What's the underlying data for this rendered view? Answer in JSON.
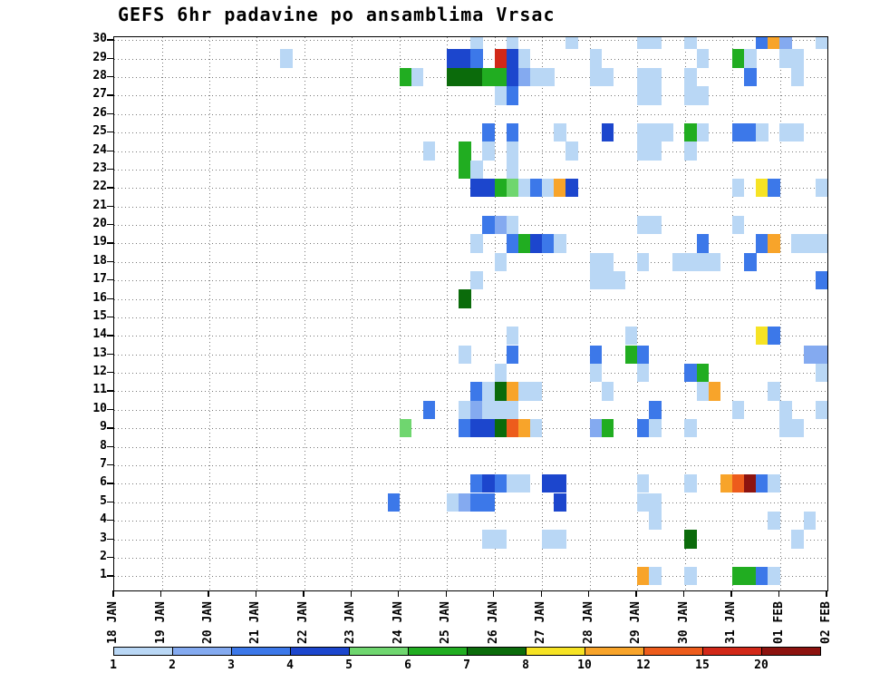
{
  "chart_data": {
    "type": "heatmap",
    "title": "GEFS 6hr padavine po ansamblima Vrsac",
    "subtitle": "",
    "grid": {
      "style": "dotted",
      "color": "#777777"
    },
    "frame_color": "#000000",
    "n_rows": 30,
    "n_cols": 60,
    "cells_per_day": 4,
    "x_axis": {
      "tick_labels": [
        "18 JAN",
        "19 JAN",
        "20 JAN",
        "21 JAN",
        "22 JAN",
        "23 JAN",
        "24 JAN",
        "25 JAN",
        "26 JAN",
        "27 JAN",
        "28 JAN",
        "29 JAN",
        "30 JAN",
        "31 JAN",
        "01 FEB",
        "02 FEB"
      ]
    },
    "y_axis": {
      "tick_labels": [
        "30",
        "29",
        "28",
        "27",
        "26",
        "25",
        "24",
        "23",
        "22",
        "21",
        "20",
        "19",
        "18",
        "17",
        "16",
        "15",
        "14",
        "13",
        "12",
        "11",
        "10",
        "9",
        "8",
        "7",
        "6",
        "5",
        "4",
        "3",
        "2",
        "1"
      ]
    },
    "legend": {
      "position": "bottom",
      "tick_labels": [
        "1",
        "2",
        "3",
        "4",
        "5",
        "6",
        "7",
        "8",
        "10",
        "12",
        "15",
        "20"
      ],
      "values": [
        1,
        2,
        3,
        4,
        5,
        6,
        7,
        8,
        10,
        12,
        15,
        20
      ],
      "colors": [
        "#b9d7f5",
        "#84aaf0",
        "#3c78e9",
        "#1c46cd",
        "#6fd66f",
        "#21ad21",
        "#0b6b0b",
        "#f6e324",
        "#f8a42a",
        "#ed5c1c",
        "#d22818",
        "#8d130f"
      ]
    },
    "cells": [
      {
        "m": 30,
        "t": 30,
        "v": 1
      },
      {
        "m": 30,
        "t": 33,
        "v": 1
      },
      {
        "m": 30,
        "t": 38,
        "v": 1
      },
      {
        "m": 30,
        "t": 44,
        "v": 1
      },
      {
        "m": 30,
        "t": 45,
        "v": 1
      },
      {
        "m": 30,
        "t": 48,
        "v": 1
      },
      {
        "m": 30,
        "t": 54,
        "v": 3
      },
      {
        "m": 30,
        "t": 55,
        "v": 10
      },
      {
        "m": 30,
        "t": 56,
        "v": 2
      },
      {
        "m": 30,
        "t": 59,
        "v": 1
      },
      {
        "m": 29,
        "t": 14,
        "v": 1
      },
      {
        "m": 29,
        "t": 28,
        "v": 4
      },
      {
        "m": 29,
        "t": 29,
        "v": 4
      },
      {
        "m": 29,
        "t": 30,
        "v": 3
      },
      {
        "m": 29,
        "t": 32,
        "v": 15
      },
      {
        "m": 29,
        "t": 33,
        "v": 4
      },
      {
        "m": 29,
        "t": 34,
        "v": 1
      },
      {
        "m": 29,
        "t": 40,
        "v": 1
      },
      {
        "m": 29,
        "t": 49,
        "v": 1
      },
      {
        "m": 29,
        "t": 52,
        "v": 6
      },
      {
        "m": 29,
        "t": 53,
        "v": 1
      },
      {
        "m": 29,
        "t": 56,
        "v": 1
      },
      {
        "m": 29,
        "t": 57,
        "v": 1
      },
      {
        "m": 28,
        "t": 24,
        "v": 6
      },
      {
        "m": 28,
        "t": 25,
        "v": 1
      },
      {
        "m": 28,
        "t": 28,
        "v": 7
      },
      {
        "m": 28,
        "t": 29,
        "v": 7
      },
      {
        "m": 28,
        "t": 30,
        "v": 7
      },
      {
        "m": 28,
        "t": 31,
        "v": 6
      },
      {
        "m": 28,
        "t": 32,
        "v": 6
      },
      {
        "m": 28,
        "t": 33,
        "v": 4
      },
      {
        "m": 28,
        "t": 34,
        "v": 2
      },
      {
        "m": 28,
        "t": 35,
        "v": 1
      },
      {
        "m": 28,
        "t": 36,
        "v": 1
      },
      {
        "m": 28,
        "t": 40,
        "v": 1
      },
      {
        "m": 28,
        "t": 41,
        "v": 1
      },
      {
        "m": 28,
        "t": 44,
        "v": 1
      },
      {
        "m": 28,
        "t": 45,
        "v": 1
      },
      {
        "m": 28,
        "t": 48,
        "v": 1
      },
      {
        "m": 28,
        "t": 53,
        "v": 3
      },
      {
        "m": 28,
        "t": 57,
        "v": 1
      },
      {
        "m": 27,
        "t": 32,
        "v": 1
      },
      {
        "m": 27,
        "t": 33,
        "v": 3
      },
      {
        "m": 27,
        "t": 44,
        "v": 1
      },
      {
        "m": 27,
        "t": 45,
        "v": 1
      },
      {
        "m": 27,
        "t": 48,
        "v": 1
      },
      {
        "m": 27,
        "t": 49,
        "v": 1
      },
      {
        "m": 25,
        "t": 31,
        "v": 3
      },
      {
        "m": 25,
        "t": 33,
        "v": 3
      },
      {
        "m": 25,
        "t": 37,
        "v": 1
      },
      {
        "m": 25,
        "t": 41,
        "v": 4
      },
      {
        "m": 25,
        "t": 44,
        "v": 1
      },
      {
        "m": 25,
        "t": 45,
        "v": 1
      },
      {
        "m": 25,
        "t": 46,
        "v": 1
      },
      {
        "m": 25,
        "t": 48,
        "v": 6
      },
      {
        "m": 25,
        "t": 49,
        "v": 1
      },
      {
        "m": 25,
        "t": 52,
        "v": 3
      },
      {
        "m": 25,
        "t": 53,
        "v": 3
      },
      {
        "m": 25,
        "t": 54,
        "v": 1
      },
      {
        "m": 25,
        "t": 56,
        "v": 1
      },
      {
        "m": 25,
        "t": 57,
        "v": 1
      },
      {
        "m": 24,
        "t": 26,
        "v": 1
      },
      {
        "m": 24,
        "t": 29,
        "v": 6
      },
      {
        "m": 24,
        "t": 31,
        "v": 1
      },
      {
        "m": 24,
        "t": 33,
        "v": 1
      },
      {
        "m": 24,
        "t": 38,
        "v": 1
      },
      {
        "m": 24,
        "t": 44,
        "v": 1
      },
      {
        "m": 24,
        "t": 45,
        "v": 1
      },
      {
        "m": 24,
        "t": 48,
        "v": 1
      },
      {
        "m": 23,
        "t": 29,
        "v": 6
      },
      {
        "m": 23,
        "t": 30,
        "v": 1
      },
      {
        "m": 23,
        "t": 33,
        "v": 1
      },
      {
        "m": 22,
        "t": 30,
        "v": 4
      },
      {
        "m": 22,
        "t": 31,
        "v": 4
      },
      {
        "m": 22,
        "t": 32,
        "v": 6
      },
      {
        "m": 22,
        "t": 33,
        "v": 5
      },
      {
        "m": 22,
        "t": 34,
        "v": 1
      },
      {
        "m": 22,
        "t": 35,
        "v": 3
      },
      {
        "m": 22,
        "t": 36,
        "v": 1
      },
      {
        "m": 22,
        "t": 37,
        "v": 10
      },
      {
        "m": 22,
        "t": 38,
        "v": 4
      },
      {
        "m": 22,
        "t": 52,
        "v": 1
      },
      {
        "m": 22,
        "t": 54,
        "v": 8
      },
      {
        "m": 22,
        "t": 55,
        "v": 3
      },
      {
        "m": 22,
        "t": 59,
        "v": 1
      },
      {
        "m": 20,
        "t": 31,
        "v": 3
      },
      {
        "m": 20,
        "t": 32,
        "v": 2
      },
      {
        "m": 20,
        "t": 33,
        "v": 1
      },
      {
        "m": 20,
        "t": 44,
        "v": 1
      },
      {
        "m": 20,
        "t": 45,
        "v": 1
      },
      {
        "m": 20,
        "t": 52,
        "v": 1
      },
      {
        "m": 19,
        "t": 30,
        "v": 1
      },
      {
        "m": 19,
        "t": 33,
        "v": 3
      },
      {
        "m": 19,
        "t": 34,
        "v": 6
      },
      {
        "m": 19,
        "t": 35,
        "v": 4
      },
      {
        "m": 19,
        "t": 36,
        "v": 3
      },
      {
        "m": 19,
        "t": 37,
        "v": 1
      },
      {
        "m": 19,
        "t": 49,
        "v": 3
      },
      {
        "m": 19,
        "t": 54,
        "v": 3
      },
      {
        "m": 19,
        "t": 55,
        "v": 10
      },
      {
        "m": 19,
        "t": 57,
        "v": 1
      },
      {
        "m": 19,
        "t": 58,
        "v": 1
      },
      {
        "m": 19,
        "t": 59,
        "v": 1
      },
      {
        "m": 18,
        "t": 32,
        "v": 1
      },
      {
        "m": 18,
        "t": 40,
        "v": 1
      },
      {
        "m": 18,
        "t": 41,
        "v": 1
      },
      {
        "m": 18,
        "t": 44,
        "v": 1
      },
      {
        "m": 18,
        "t": 47,
        "v": 1
      },
      {
        "m": 18,
        "t": 48,
        "v": 1
      },
      {
        "m": 18,
        "t": 49,
        "v": 1
      },
      {
        "m": 18,
        "t": 50,
        "v": 1
      },
      {
        "m": 18,
        "t": 53,
        "v": 3
      },
      {
        "m": 17,
        "t": 30,
        "v": 1
      },
      {
        "m": 17,
        "t": 40,
        "v": 1
      },
      {
        "m": 17,
        "t": 41,
        "v": 1
      },
      {
        "m": 17,
        "t": 42,
        "v": 1
      },
      {
        "m": 17,
        "t": 59,
        "v": 3
      },
      {
        "m": 16,
        "t": 29,
        "v": 7
      },
      {
        "m": 14,
        "t": 33,
        "v": 1
      },
      {
        "m": 14,
        "t": 43,
        "v": 1
      },
      {
        "m": 14,
        "t": 54,
        "v": 8
      },
      {
        "m": 14,
        "t": 55,
        "v": 3
      },
      {
        "m": 13,
        "t": 29,
        "v": 1
      },
      {
        "m": 13,
        "t": 33,
        "v": 3
      },
      {
        "m": 13,
        "t": 40,
        "v": 3
      },
      {
        "m": 13,
        "t": 43,
        "v": 6
      },
      {
        "m": 13,
        "t": 44,
        "v": 3
      },
      {
        "m": 13,
        "t": 58,
        "v": 2
      },
      {
        "m": 13,
        "t": 59,
        "v": 2
      },
      {
        "m": 12,
        "t": 32,
        "v": 1
      },
      {
        "m": 12,
        "t": 40,
        "v": 1
      },
      {
        "m": 12,
        "t": 44,
        "v": 1
      },
      {
        "m": 12,
        "t": 48,
        "v": 3
      },
      {
        "m": 12,
        "t": 49,
        "v": 6
      },
      {
        "m": 12,
        "t": 59,
        "v": 1
      },
      {
        "m": 11,
        "t": 30,
        "v": 3
      },
      {
        "m": 11,
        "t": 31,
        "v": 1
      },
      {
        "m": 11,
        "t": 32,
        "v": 7
      },
      {
        "m": 11,
        "t": 33,
        "v": 10
      },
      {
        "m": 11,
        "t": 34,
        "v": 1
      },
      {
        "m": 11,
        "t": 35,
        "v": 1
      },
      {
        "m": 11,
        "t": 41,
        "v": 1
      },
      {
        "m": 11,
        "t": 49,
        "v": 1
      },
      {
        "m": 11,
        "t": 50,
        "v": 10
      },
      {
        "m": 11,
        "t": 55,
        "v": 1
      },
      {
        "m": 10,
        "t": 26,
        "v": 3
      },
      {
        "m": 10,
        "t": 29,
        "v": 1
      },
      {
        "m": 10,
        "t": 30,
        "v": 2
      },
      {
        "m": 10,
        "t": 31,
        "v": 1
      },
      {
        "m": 10,
        "t": 32,
        "v": 1
      },
      {
        "m": 10,
        "t": 33,
        "v": 1
      },
      {
        "m": 10,
        "t": 45,
        "v": 3
      },
      {
        "m": 10,
        "t": 52,
        "v": 1
      },
      {
        "m": 10,
        "t": 56,
        "v": 1
      },
      {
        "m": 10,
        "t": 59,
        "v": 1
      },
      {
        "m": 9,
        "t": 24,
        "v": 5
      },
      {
        "m": 9,
        "t": 29,
        "v": 3
      },
      {
        "m": 9,
        "t": 30,
        "v": 4
      },
      {
        "m": 9,
        "t": 31,
        "v": 4
      },
      {
        "m": 9,
        "t": 32,
        "v": 7
      },
      {
        "m": 9,
        "t": 33,
        "v": 12
      },
      {
        "m": 9,
        "t": 34,
        "v": 10
      },
      {
        "m": 9,
        "t": 35,
        "v": 1
      },
      {
        "m": 9,
        "t": 40,
        "v": 2
      },
      {
        "m": 9,
        "t": 41,
        "v": 6
      },
      {
        "m": 9,
        "t": 44,
        "v": 3
      },
      {
        "m": 9,
        "t": 45,
        "v": 1
      },
      {
        "m": 9,
        "t": 48,
        "v": 1
      },
      {
        "m": 9,
        "t": 56,
        "v": 1
      },
      {
        "m": 9,
        "t": 57,
        "v": 1
      },
      {
        "m": 6,
        "t": 30,
        "v": 3
      },
      {
        "m": 6,
        "t": 31,
        "v": 4
      },
      {
        "m": 6,
        "t": 32,
        "v": 3
      },
      {
        "m": 6,
        "t": 33,
        "v": 1
      },
      {
        "m": 6,
        "t": 34,
        "v": 1
      },
      {
        "m": 6,
        "t": 36,
        "v": 4
      },
      {
        "m": 6,
        "t": 37,
        "v": 4
      },
      {
        "m": 6,
        "t": 44,
        "v": 1
      },
      {
        "m": 6,
        "t": 48,
        "v": 1
      },
      {
        "m": 6,
        "t": 51,
        "v": 10
      },
      {
        "m": 6,
        "t": 52,
        "v": 12
      },
      {
        "m": 6,
        "t": 53,
        "v": 20
      },
      {
        "m": 6,
        "t": 54,
        "v": 3
      },
      {
        "m": 6,
        "t": 55,
        "v": 1
      },
      {
        "m": 5,
        "t": 23,
        "v": 3
      },
      {
        "m": 5,
        "t": 28,
        "v": 1
      },
      {
        "m": 5,
        "t": 29,
        "v": 2
      },
      {
        "m": 5,
        "t": 30,
        "v": 3
      },
      {
        "m": 5,
        "t": 31,
        "v": 3
      },
      {
        "m": 5,
        "t": 37,
        "v": 4
      },
      {
        "m": 5,
        "t": 44,
        "v": 1
      },
      {
        "m": 5,
        "t": 45,
        "v": 1
      },
      {
        "m": 4,
        "t": 45,
        "v": 1
      },
      {
        "m": 4,
        "t": 55,
        "v": 1
      },
      {
        "m": 4,
        "t": 58,
        "v": 1
      },
      {
        "m": 3,
        "t": 31,
        "v": 1
      },
      {
        "m": 3,
        "t": 32,
        "v": 1
      },
      {
        "m": 3,
        "t": 36,
        "v": 1
      },
      {
        "m": 3,
        "t": 37,
        "v": 1
      },
      {
        "m": 3,
        "t": 48,
        "v": 7
      },
      {
        "m": 3,
        "t": 57,
        "v": 1
      },
      {
        "m": 1,
        "t": 44,
        "v": 10
      },
      {
        "m": 1,
        "t": 45,
        "v": 1
      },
      {
        "m": 1,
        "t": 48,
        "v": 1
      },
      {
        "m": 1,
        "t": 52,
        "v": 6
      },
      {
        "m": 1,
        "t": 53,
        "v": 6
      },
      {
        "m": 1,
        "t": 54,
        "v": 3
      },
      {
        "m": 1,
        "t": 55,
        "v": 1
      }
    ]
  }
}
